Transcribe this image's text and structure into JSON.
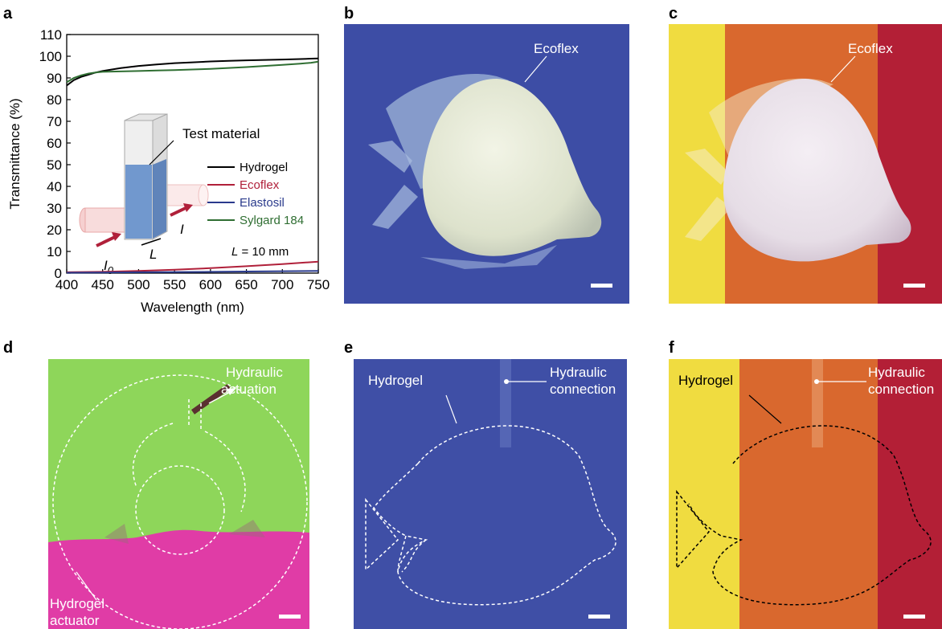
{
  "panel_labels": {
    "a": "a",
    "b": "b",
    "c": "c",
    "d": "d",
    "e": "e",
    "f": "f"
  },
  "chart_data": {
    "type": "line",
    "xlabel": "Wavelength (nm)",
    "ylabel": "Transmittance (%)",
    "xlim": [
      400,
      750
    ],
    "ylim": [
      0,
      110
    ],
    "xticks": [
      400,
      450,
      500,
      550,
      600,
      650,
      700,
      750
    ],
    "yticks": [
      0,
      10,
      20,
      30,
      40,
      50,
      60,
      70,
      80,
      90,
      100,
      110
    ],
    "grid": false,
    "legend_position": "right",
    "series": [
      {
        "name": "Hydrogel",
        "color": "#000000",
        "x": [
          400,
          410,
          420,
          430,
          440,
          450,
          475,
          500,
          525,
          550,
          575,
          600,
          625,
          650,
          675,
          700,
          725,
          740,
          750
        ],
        "y": [
          86.5,
          89.0,
          90.5,
          91.5,
          92.5,
          93.2,
          94.5,
          95.5,
          96.2,
          96.8,
          97.2,
          97.6,
          97.9,
          98.1,
          98.3,
          98.5,
          98.7,
          98.9,
          99.0
        ]
      },
      {
        "name": "Ecoflex",
        "color": "#b0203a",
        "x": [
          400,
          450,
          500,
          550,
          600,
          650,
          700,
          750
        ],
        "y": [
          0.4,
          0.6,
          1.0,
          1.6,
          2.3,
          3.2,
          4.2,
          5.3
        ]
      },
      {
        "name": "Elastosil",
        "color": "#2a3a8c",
        "x": [
          400,
          500,
          600,
          700,
          750
        ],
        "y": [
          0.2,
          0.4,
          0.6,
          0.9,
          1.0
        ]
      },
      {
        "name": "Sylgard 184",
        "color": "#2f6e32",
        "x": [
          400,
          410,
          420,
          430,
          440,
          450,
          475,
          500,
          525,
          550,
          575,
          600,
          625,
          650,
          675,
          700,
          725,
          740,
          750
        ],
        "y": [
          88.0,
          90.0,
          91.2,
          92.0,
          92.5,
          92.8,
          93.0,
          93.2,
          93.4,
          93.6,
          93.9,
          94.2,
          94.6,
          95.0,
          95.5,
          96.0,
          96.6,
          97.0,
          97.5
        ]
      }
    ],
    "inset_labels": {
      "test_material": "Test material",
      "I0": "I",
      "I0_sub": "0",
      "I": "I",
      "L": "L"
    },
    "annotation": {
      "L": "L",
      "rest": " = 10 mm"
    }
  },
  "panel_b": {
    "label": "Ecoflex"
  },
  "panel_c": {
    "label": "Ecoflex"
  },
  "panel_d": {
    "top_label_1": "Hydraulic",
    "top_label_2": "actuation",
    "bottom_label_1": "Hydrogel",
    "bottom_label_2": "actuator"
  },
  "panel_e": {
    "left_label": "Hydrogel",
    "right_label_1": "Hydraulic",
    "right_label_2": "connection"
  },
  "panel_f": {
    "left_label": "Hydrogel",
    "right_label_1": "Hydraulic",
    "right_label_2": "connection"
  },
  "colors": {
    "blue_bg": "#3f4fa6",
    "yellow": "#f4e23a",
    "orange": "#e07b2c",
    "crimson": "#b82a38",
    "green": "#8ed65a",
    "magenta": "#e03aa8",
    "specimen": "#e8ecd8"
  }
}
